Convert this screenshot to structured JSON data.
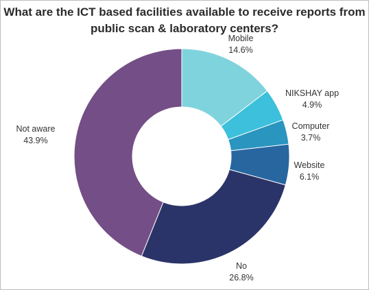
{
  "chart_data": {
    "type": "pie",
    "title_lines": [
      "What are the ICT based facilities available to receive reports from",
      "public scan & laboratory centers?"
    ],
    "slices": [
      {
        "label": "Mobile",
        "value": 14.6,
        "display": "14.6%",
        "color": "#7fd3dd"
      },
      {
        "label": "NIKSHAY app",
        "value": 4.9,
        "display": "4.9%",
        "color": "#3cc0dc"
      },
      {
        "label": "Computer",
        "value": 3.7,
        "display": "3.7%",
        "color": "#2a95bf"
      },
      {
        "label": "Website",
        "value": 6.1,
        "display": "6.1%",
        "color": "#2866a0"
      },
      {
        "label": "No",
        "value": 26.8,
        "display": "26.8%",
        "color": "#2b3468"
      },
      {
        "label": "Not aware",
        "value": 43.9,
        "display": "43.9%",
        "color": "#744e86"
      }
    ]
  }
}
